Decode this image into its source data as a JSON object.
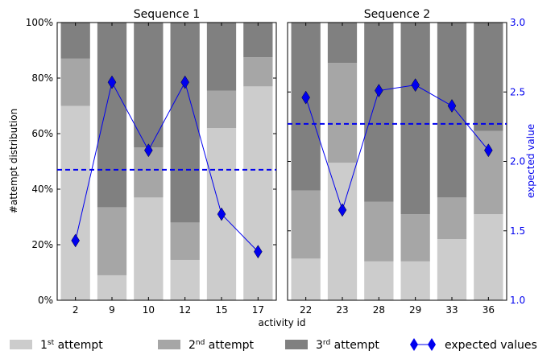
{
  "chart_data": {
    "type": "bar",
    "stacked": true,
    "xlabel": "activity id",
    "ylabel_left": "#attempt distribution",
    "ylabel_right": "expected value",
    "ylim_left": [
      0,
      100
    ],
    "ylim_right": [
      1.0,
      3.0
    ],
    "left_ticks": [
      "0%",
      "20%",
      "40%",
      "60%",
      "80%",
      "100%"
    ],
    "right_ticks": [
      "1.0",
      "1.5",
      "2.0",
      "2.5",
      "3.0"
    ],
    "colors": {
      "attempt1": "#cccccc",
      "attempt2": "#a6a6a6",
      "attempt3": "#808080",
      "expected": "#0000ee"
    },
    "panels": [
      {
        "title": "Sequence 1",
        "categories": [
          "2",
          "9",
          "10",
          "12",
          "15",
          "17"
        ],
        "series": [
          {
            "name": "1st attempt",
            "values": [
              70,
              9,
              37,
              14.5,
              62,
              77
            ]
          },
          {
            "name": "2nd attempt",
            "values": [
              17,
              24.5,
              18,
              13.5,
              13.5,
              10.5
            ]
          },
          {
            "name": "3rd attempt",
            "values": [
              13,
              66.5,
              45,
              72,
              24.5,
              12.5
            ]
          }
        ],
        "expected_values": [
          1.43,
          2.57,
          2.08,
          2.57,
          1.62,
          1.35
        ],
        "expected_mean": 1.94
      },
      {
        "title": "Sequence 2",
        "categories": [
          "22",
          "23",
          "28",
          "29",
          "33",
          "36"
        ],
        "series": [
          {
            "name": "1st attempt",
            "values": [
              15,
              49.5,
              14,
              14,
              22,
              31
            ]
          },
          {
            "name": "2nd attempt",
            "values": [
              24.5,
              36,
              21.5,
              17,
              15,
              30
            ]
          },
          {
            "name": "3rd attempt",
            "values": [
              60.5,
              14.5,
              64.5,
              69,
              63,
              39
            ]
          }
        ],
        "expected_values": [
          2.46,
          1.65,
          2.51,
          2.55,
          2.4,
          2.08
        ],
        "expected_mean": 2.27
      }
    ],
    "legend": {
      "position": "bottom",
      "items": [
        {
          "base": "1",
          "sup": "st",
          "rest": " attempt",
          "key": "attempt1",
          "kind": "patch"
        },
        {
          "base": "2",
          "sup": "nd",
          "rest": " attempt",
          "key": "attempt2",
          "kind": "patch"
        },
        {
          "base": "3",
          "sup": "rd",
          "rest": " attempt",
          "key": "attempt3",
          "kind": "patch"
        },
        {
          "base": "expected values",
          "sup": "",
          "rest": "",
          "key": "expected",
          "kind": "line-marker"
        }
      ]
    }
  }
}
